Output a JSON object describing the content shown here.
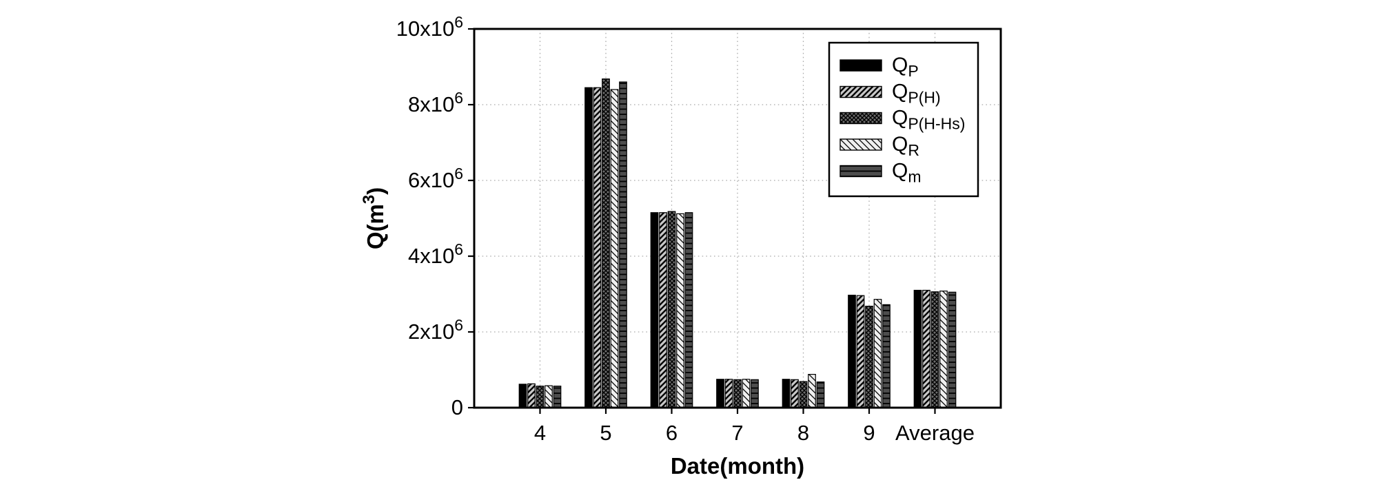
{
  "chart_data": {
    "type": "bar",
    "title": "",
    "xlabel": "Date(month)",
    "ylabel": {
      "base": "Q(m",
      "sup": "3",
      "rest": ")"
    },
    "categories": [
      "4",
      "5",
      "6",
      "7",
      "8",
      "9",
      "Average"
    ],
    "series": [
      {
        "name": "QP",
        "label_main": "Q",
        "label_sub": "P",
        "pattern": "solid-black",
        "fill": "#000000",
        "values": [
          620000,
          8450000,
          5150000,
          750000,
          750000,
          2970000,
          3100000
        ]
      },
      {
        "name": "QP(H)",
        "label_main": "Q",
        "label_sub": "P(H)",
        "pattern": "diagonal-forward-hatch",
        "fill": "#c9c9c9",
        "values": [
          630000,
          8450000,
          5150000,
          750000,
          740000,
          2960000,
          3100000
        ]
      },
      {
        "name": "QP(H-Hs)",
        "label_main": "Q",
        "label_sub": "P(H-Hs)",
        "pattern": "crosshatch-dark",
        "fill": "#6e6e6e",
        "values": [
          570000,
          8680000,
          5180000,
          740000,
          690000,
          2680000,
          3060000
        ]
      },
      {
        "name": "QR",
        "label_main": "Q",
        "label_sub": "R",
        "pattern": "diagonal-back-hatch",
        "fill": "#efefef",
        "values": [
          580000,
          8400000,
          5120000,
          750000,
          880000,
          2860000,
          3080000
        ]
      },
      {
        "name": "Qm",
        "label_main": "Q",
        "label_sub": "m",
        "pattern": "horizontal-stripe-dark",
        "fill": "#4d4d4d",
        "values": [
          570000,
          8600000,
          5150000,
          740000,
          680000,
          2720000,
          3050000
        ]
      }
    ],
    "ylim": [
      0,
      10000000
    ],
    "yticks": [
      {
        "value": 0,
        "base": "0",
        "sup": ""
      },
      {
        "value": 2000000,
        "base": "2x10",
        "sup": "6"
      },
      {
        "value": 4000000,
        "base": "4x10",
        "sup": "6"
      },
      {
        "value": 6000000,
        "base": "6x10",
        "sup": "6"
      },
      {
        "value": 8000000,
        "base": "8x10",
        "sup": "6"
      },
      {
        "value": 10000000,
        "base": "10x10",
        "sup": "6"
      }
    ],
    "grid": {
      "horizontal": true,
      "vertical": true,
      "style": "dotted",
      "color": "#aaaaaa"
    },
    "legend_position": "top-right",
    "colors": {
      "axis": "#000000",
      "background": "#ffffff"
    }
  }
}
